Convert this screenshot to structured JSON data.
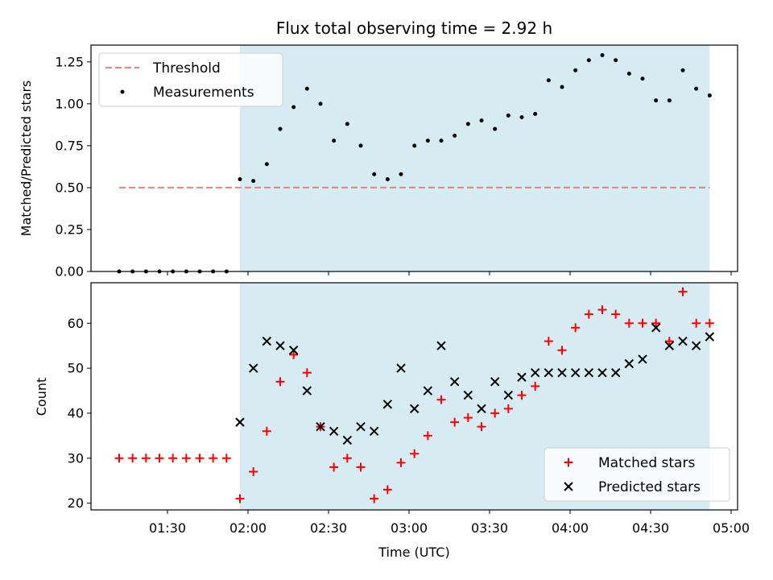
{
  "chart_data": [
    {
      "type": "scatter",
      "title": "Flux total observing time = 2.92 h",
      "xlabel": "",
      "ylabel": "Matched/Predicted stars",
      "x_unit": "time (UTC)",
      "x": [
        "01:12",
        "01:17",
        "01:22",
        "01:27",
        "01:32",
        "01:37",
        "01:42",
        "01:47",
        "01:52",
        "01:57",
        "02:02",
        "02:07",
        "02:12",
        "02:17",
        "02:22",
        "02:27",
        "02:32",
        "02:37",
        "02:42",
        "02:47",
        "02:52",
        "02:57",
        "03:02",
        "03:07",
        "03:12",
        "03:17",
        "03:22",
        "03:27",
        "03:32",
        "03:37",
        "03:42",
        "03:47",
        "03:52",
        "03:57",
        "04:02",
        "04:07",
        "04:12",
        "04:17",
        "04:22",
        "04:27",
        "04:32",
        "04:37",
        "04:42",
        "04:47",
        "04:52"
      ],
      "ylim": [
        0,
        1.35
      ],
      "yticks": [
        "0.00",
        "0.25",
        "0.50",
        "0.75",
        "1.00",
        "1.25"
      ],
      "series": [
        {
          "name": "Threshold",
          "kind": "dashed-line",
          "color": "#f08080",
          "x": [
            "01:12",
            "04:52"
          ],
          "values": [
            0.5,
            0.5
          ]
        },
        {
          "name": "Measurements",
          "kind": "dot",
          "color": "#000000",
          "values": [
            0,
            0,
            0,
            0,
            0,
            0,
            0,
            0,
            0,
            0.55,
            0.54,
            0.64,
            0.85,
            0.98,
            1.09,
            1.0,
            0.78,
            0.88,
            0.75,
            0.58,
            0.55,
            0.58,
            0.75,
            0.78,
            0.78,
            0.81,
            0.88,
            0.9,
            0.85,
            0.93,
            0.92,
            0.94,
            1.14,
            1.1,
            1.2,
            1.26,
            1.29,
            1.26,
            1.18,
            1.15,
            1.02,
            1.02,
            1.2,
            1.09,
            1.05
          ]
        }
      ],
      "legend": "upper-left",
      "shaded_region": {
        "from": "01:57",
        "to": "04:52",
        "color": "#add8e6"
      }
    },
    {
      "type": "scatter",
      "title": "",
      "xlabel": "Time (UTC)",
      "ylabel": "Count",
      "xticks": [
        "01:30",
        "02:00",
        "02:30",
        "03:00",
        "03:30",
        "04:00",
        "04:30",
        "05:00"
      ],
      "ylim": [
        18.5,
        69
      ],
      "yticks": [
        "20",
        "30",
        "40",
        "50",
        "60"
      ],
      "series": [
        {
          "name": "Matched stars",
          "kind": "plus",
          "color": "#ff0000",
          "values": [
            30,
            30,
            30,
            30,
            30,
            30,
            30,
            30,
            30,
            21,
            27,
            36,
            47,
            53,
            49,
            37,
            28,
            30,
            28,
            21,
            23,
            29,
            31,
            35,
            43,
            38,
            39,
            37,
            40,
            41,
            44,
            46,
            56,
            54,
            59,
            62,
            63,
            62,
            60,
            60,
            60,
            56,
            67,
            60,
            60
          ]
        },
        {
          "name": "Predicted stars",
          "kind": "x",
          "color": "#000000",
          "x": [
            "01:57",
            "02:02",
            "02:07",
            "02:12",
            "02:17",
            "02:22",
            "02:27",
            "02:32",
            "02:37",
            "02:42",
            "02:47",
            "02:52",
            "02:57",
            "03:02",
            "03:07",
            "03:12",
            "03:17",
            "03:22",
            "03:27",
            "03:32",
            "03:37",
            "03:42",
            "03:47",
            "03:52",
            "03:57",
            "04:02",
            "04:07",
            "04:12",
            "04:17",
            "04:22",
            "04:27",
            "04:32",
            "04:37",
            "04:42",
            "04:47",
            "04:52"
          ],
          "values": [
            38,
            50,
            56,
            55,
            54,
            45,
            37,
            36,
            34,
            37,
            36,
            42,
            50,
            41,
            45,
            55,
            47,
            44,
            41,
            47,
            44,
            48,
            49,
            49,
            49,
            49,
            49,
            49,
            49,
            51,
            52,
            59,
            55,
            56,
            55,
            57
          ]
        }
      ],
      "legend": "lower-right",
      "shaded_region": {
        "from": "01:57",
        "to": "04:52",
        "color": "#add8e6"
      }
    }
  ]
}
